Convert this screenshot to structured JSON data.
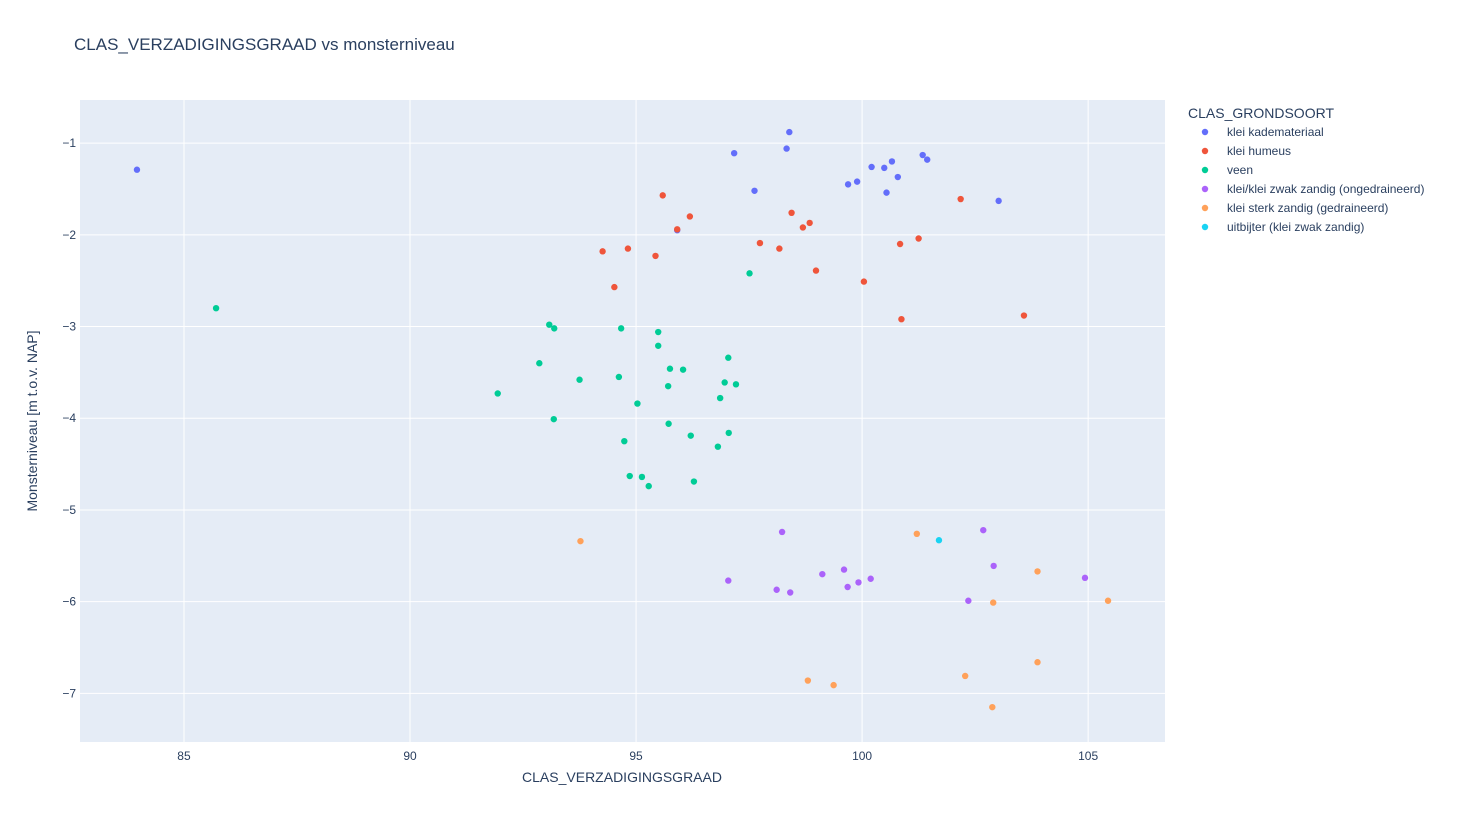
{
  "chart_data": {
    "type": "scatter",
    "title": "CLAS_VERZADIGINGSGRAAD vs monsterniveau",
    "xlabel": "CLAS_VERZADIGINGSGRAAD",
    "ylabel": "Monsterniveau [m t.o.v. NAP]",
    "xlim": [
      82.7,
      106.7
    ],
    "ylim": [
      -7.53,
      -0.53
    ],
    "xticks": [
      85,
      90,
      95,
      100,
      105
    ],
    "yticks": [
      -1,
      -2,
      -3,
      -4,
      -5,
      -6,
      -7
    ],
    "ytick_labels": [
      "−1",
      "−2",
      "−3",
      "−4",
      "−5",
      "−6",
      "−7"
    ],
    "grid": true,
    "background": "#e5ecf6",
    "legend": {
      "title": "CLAS_GRONDSOORT",
      "placement": "right"
    },
    "series": [
      {
        "name": "klei kademateriaal",
        "color": "#636efa",
        "points": [
          [
            83.96,
            -1.29
          ],
          [
            97.17,
            -1.11
          ],
          [
            98.33,
            -1.06
          ],
          [
            98.39,
            -0.88
          ],
          [
            97.62,
            -1.52
          ],
          [
            95.91,
            -1.95
          ],
          [
            99.69,
            -1.45
          ],
          [
            99.89,
            -1.42
          ],
          [
            100.21,
            -1.26
          ],
          [
            100.49,
            -1.27
          ],
          [
            100.54,
            -1.54
          ],
          [
            100.66,
            -1.2
          ],
          [
            100.79,
            -1.37
          ],
          [
            101.34,
            -1.13
          ],
          [
            101.44,
            -1.18
          ],
          [
            103.02,
            -1.63
          ]
        ]
      },
      {
        "name": "klei humeus",
        "color": "#ef553b",
        "points": [
          [
            94.26,
            -2.18
          ],
          [
            94.52,
            -2.57
          ],
          [
            94.82,
            -2.15
          ],
          [
            95.43,
            -2.23
          ],
          [
            95.59,
            -1.57
          ],
          [
            95.91,
            -1.94
          ],
          [
            96.19,
            -1.8
          ],
          [
            97.74,
            -2.09
          ],
          [
            98.17,
            -2.15
          ],
          [
            98.44,
            -1.76
          ],
          [
            98.69,
            -1.92
          ],
          [
            98.84,
            -1.87
          ],
          [
            98.98,
            -2.39
          ],
          [
            100.04,
            -2.51
          ],
          [
            100.84,
            -2.1
          ],
          [
            100.87,
            -2.92
          ],
          [
            101.25,
            -2.04
          ],
          [
            102.18,
            -1.61
          ],
          [
            103.58,
            -2.88
          ]
        ]
      },
      {
        "name": "veen",
        "color": "#00cc96",
        "points": [
          [
            85.71,
            -2.8
          ],
          [
            91.94,
            -3.73
          ],
          [
            92.86,
            -3.4
          ],
          [
            93.08,
            -2.98
          ],
          [
            93.19,
            -3.02
          ],
          [
            93.18,
            -4.01
          ],
          [
            93.75,
            -3.58
          ],
          [
            94.62,
            -3.55
          ],
          [
            94.67,
            -3.02
          ],
          [
            94.74,
            -4.25
          ],
          [
            94.86,
            -4.63
          ],
          [
            95.03,
            -3.84
          ],
          [
            95.13,
            -4.64
          ],
          [
            95.28,
            -4.74
          ],
          [
            95.49,
            -3.06
          ],
          [
            95.49,
            -3.21
          ],
          [
            95.71,
            -3.65
          ],
          [
            95.72,
            -4.06
          ],
          [
            95.75,
            -3.46
          ],
          [
            96.04,
            -3.47
          ],
          [
            96.21,
            -4.19
          ],
          [
            96.28,
            -4.69
          ],
          [
            96.81,
            -4.31
          ],
          [
            96.86,
            -3.78
          ],
          [
            96.96,
            -3.61
          ],
          [
            97.04,
            -3.34
          ],
          [
            97.05,
            -4.16
          ],
          [
            97.21,
            -3.63
          ],
          [
            97.51,
            -2.42
          ]
        ]
      },
      {
        "name": "klei/klei zwak zandig (ongedraineerd)",
        "color": "#ab63fa",
        "points": [
          [
            97.04,
            -5.77
          ],
          [
            98.11,
            -5.87
          ],
          [
            98.23,
            -5.24
          ],
          [
            98.41,
            -5.9
          ],
          [
            99.12,
            -5.7
          ],
          [
            99.6,
            -5.65
          ],
          [
            99.68,
            -5.84
          ],
          [
            99.92,
            -5.79
          ],
          [
            100.19,
            -5.75
          ],
          [
            102.35,
            -5.99
          ],
          [
            102.68,
            -5.22
          ],
          [
            102.91,
            -5.61
          ],
          [
            104.93,
            -5.74
          ]
        ]
      },
      {
        "name": "klei sterk zandig (gedraineerd)",
        "color": "#ffa15a",
        "points": [
          [
            93.77,
            -5.34
          ],
          [
            98.8,
            -6.86
          ],
          [
            99.37,
            -6.91
          ],
          [
            101.21,
            -5.26
          ],
          [
            102.28,
            -6.81
          ],
          [
            102.88,
            -7.15
          ],
          [
            102.9,
            -6.01
          ],
          [
            103.88,
            -5.67
          ],
          [
            103.88,
            -6.66
          ],
          [
            105.44,
            -5.99
          ]
        ]
      },
      {
        "name": "uitbijter (klei zwak zandig)",
        "color": "#19d3f3",
        "points": [
          [
            101.7,
            -5.33
          ]
        ]
      }
    ]
  }
}
